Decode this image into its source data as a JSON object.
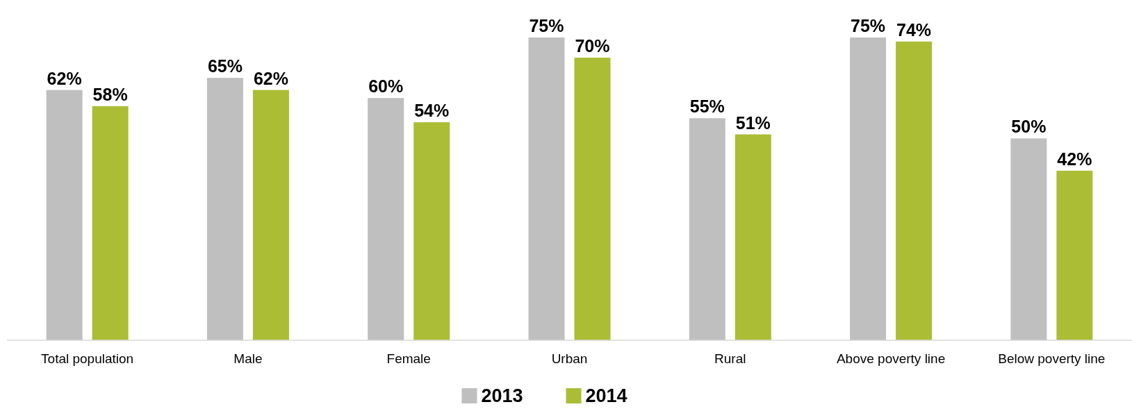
{
  "chart_data": {
    "type": "bar",
    "categories": [
      "Total population",
      "Male",
      "Female",
      "Urban",
      "Rural",
      "Above poverty line",
      "Below poverty line"
    ],
    "series": [
      {
        "name": "2013",
        "color": "#bfbfbf",
        "values": [
          62,
          65,
          60,
          75,
          55,
          75,
          50
        ],
        "value_labels": [
          "62%",
          "65%",
          "60%",
          "75%",
          "55%",
          "75%",
          "50%"
        ]
      },
      {
        "name": "2014",
        "color": "#abbd35",
        "values": [
          58,
          62,
          54,
          70,
          51,
          74,
          42
        ],
        "value_labels": [
          "58%",
          "62%",
          "54%",
          "70%",
          "51%",
          "74%",
          "42%"
        ]
      }
    ],
    "legend": "bottom",
    "grid": false,
    "tick_labels": "x"
  }
}
